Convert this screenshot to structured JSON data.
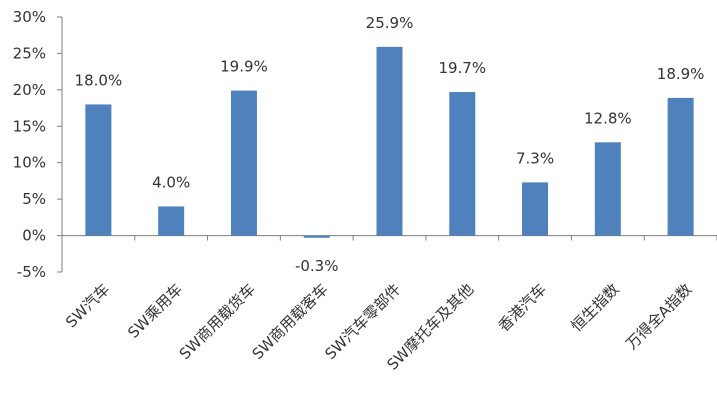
{
  "chart_data": {
    "type": "bar",
    "title": "",
    "xlabel": "",
    "ylabel": "",
    "categories": [
      "SW汽车",
      "SW乘用车",
      "SW商用载货车",
      "SW商用载客车",
      "SW汽车零部件",
      "SW摩托车及其他",
      "香港汽车",
      "恒生指数",
      "万得全A指数"
    ],
    "values": [
      18.0,
      4.0,
      19.9,
      -0.3,
      25.9,
      19.7,
      7.3,
      12.8,
      18.9
    ],
    "data_labels": [
      "18.0%",
      "4.0%",
      "19.9%",
      "-0.3%",
      "25.9%",
      "19.7%",
      "7.3%",
      "12.8%",
      "18.9%"
    ],
    "ylim": [
      -5,
      30
    ],
    "yticks": [
      -5,
      0,
      5,
      10,
      15,
      20,
      25,
      30
    ],
    "ytick_labels": [
      "-5%",
      "0%",
      "5%",
      "10%",
      "15%",
      "20%",
      "25%",
      "30%"
    ],
    "grid": false,
    "legend": "none",
    "bar_color": "#4f81bd"
  }
}
